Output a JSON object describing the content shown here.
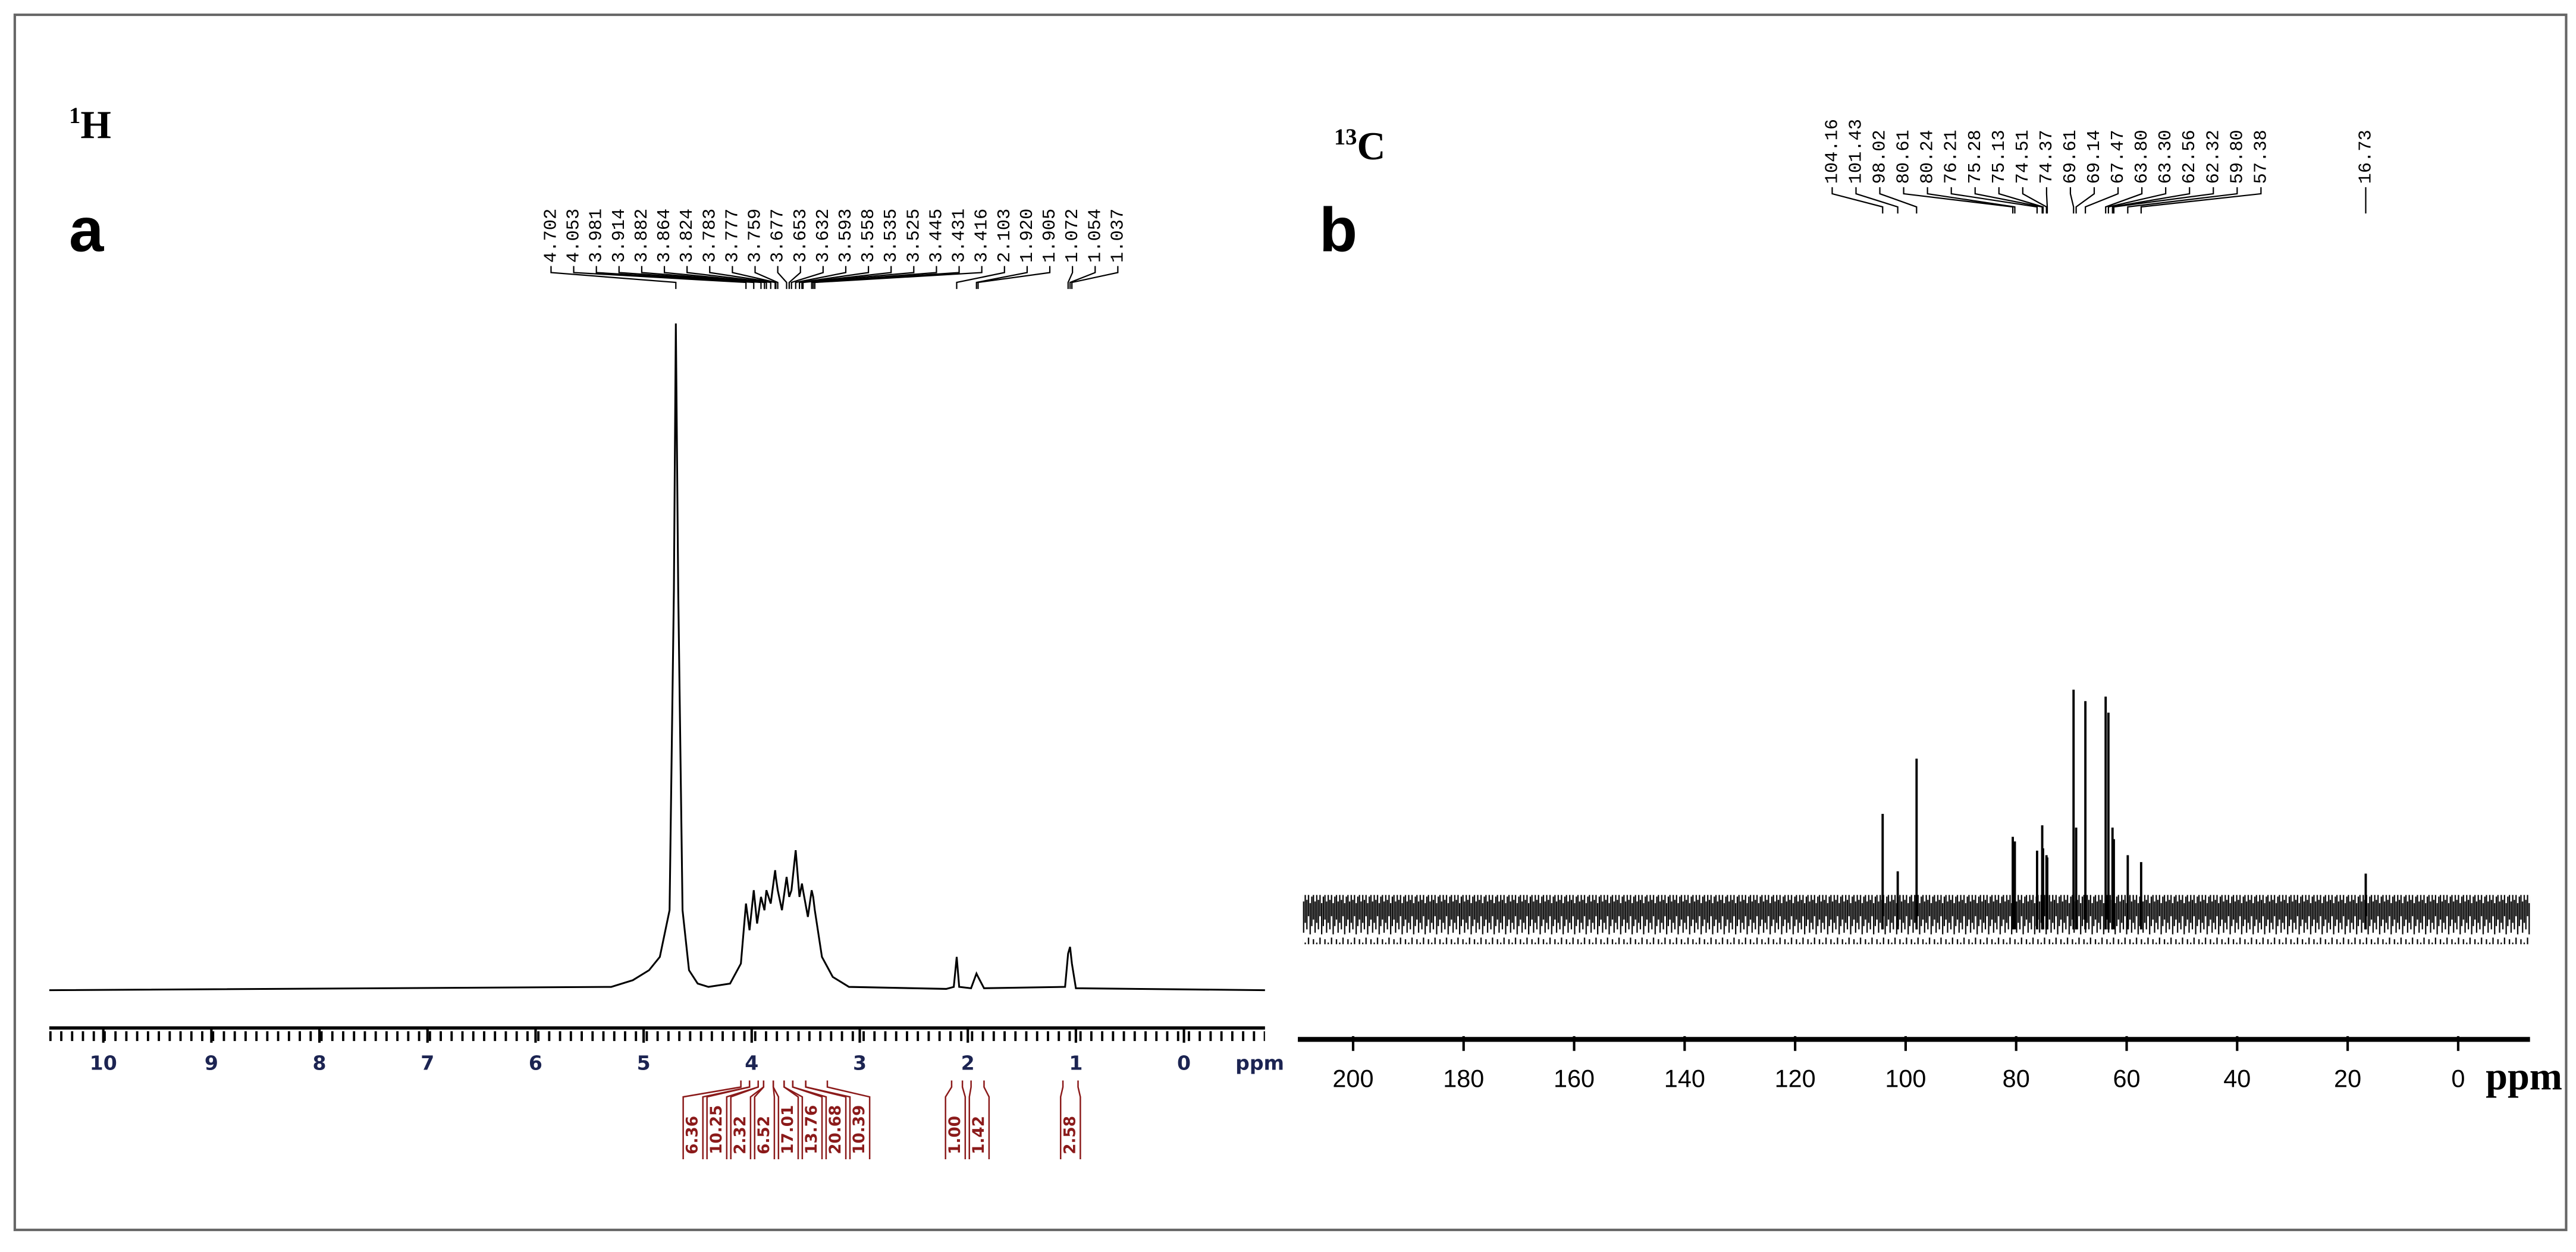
{
  "chart_data": [
    {
      "type": "line",
      "nucleus_mass": "1",
      "nucleus": "H",
      "panel": "a",
      "x_label": "ppm",
      "color": "#000000",
      "tick_color": "#1c2452",
      "integral_color": "#8b1a1a",
      "xlim": [
        10.5,
        -0.75
      ],
      "xticks": [
        10,
        9,
        8,
        7,
        6,
        5,
        4,
        3,
        2,
        1,
        0
      ],
      "ylim": [
        -5.9,
        100
      ],
      "x": [
        10.5,
        5.3,
        5.1,
        4.95,
        4.85,
        4.76,
        4.72,
        4.702,
        4.68,
        4.64,
        4.58,
        4.5,
        4.4,
        4.2,
        4.1,
        4.053,
        4.02,
        3.981,
        3.95,
        3.914,
        3.882,
        3.864,
        3.824,
        3.783,
        3.777,
        3.759,
        3.72,
        3.677,
        3.653,
        3.632,
        3.593,
        3.558,
        3.535,
        3.525,
        3.48,
        3.445,
        3.431,
        3.416,
        3.35,
        3.25,
        3.1,
        2.2,
        2.13,
        2.103,
        2.08,
        1.97,
        1.92,
        1.905,
        1.85,
        1.1,
        1.072,
        1.054,
        1.037,
        1.0,
        -0.75
      ],
      "values": [
        0,
        0.5,
        1.5,
        3,
        5,
        12,
        60,
        100,
        60,
        12,
        3,
        1,
        0.5,
        1,
        4,
        13,
        9,
        15,
        10,
        14,
        12,
        15,
        13,
        18,
        17,
        15,
        12,
        17,
        14,
        15,
        21,
        14,
        16,
        15,
        11,
        15,
        14,
        12,
        5,
        2,
        0.5,
        0.2,
        0.5,
        5,
        0.5,
        0.3,
        2.5,
        2,
        0.3,
        0.5,
        5.5,
        6.5,
        4,
        0.3,
        0
      ],
      "peaks": [
        4.702,
        4.053,
        3.981,
        3.914,
        3.882,
        3.864,
        3.824,
        3.783,
        3.777,
        3.759,
        3.677,
        3.653,
        3.632,
        3.593,
        3.558,
        3.535,
        3.525,
        3.445,
        3.431,
        3.416,
        2.103,
        {
          "value": 1.92,
          "label": "1.920"
        },
        1.905,
        1.072,
        1.054,
        1.037
      ],
      "integrals": [
        6.36,
        10.25,
        2.32,
        6.52,
        17.01,
        13.76,
        20.68,
        10.39,
        {
          "value": 1,
          "label": "1.00"
        },
        1.42,
        2.58
      ],
      "integral_regions": [
        [
          4.1,
          4.02
        ],
        [
          4.02,
          3.94
        ],
        [
          3.94,
          3.89
        ],
        [
          3.89,
          3.8
        ],
        [
          3.8,
          3.7
        ],
        [
          3.7,
          3.62
        ],
        [
          3.62,
          3.5
        ],
        [
          3.5,
          3.3
        ],
        [
          2.15,
          2.05
        ],
        [
          1.97,
          1.85
        ],
        [
          1.12,
          0.98
        ]
      ]
    },
    {
      "type": "stick",
      "nucleus_mass": "13",
      "nucleus": "C",
      "panel": "b",
      "x_label": "ppm",
      "color": "#000000",
      "tick_color": "#000000",
      "xlim": [
        210,
        -13
      ],
      "xticks": [
        200,
        180,
        160,
        140,
        120,
        100,
        80,
        60,
        40,
        20,
        0
      ],
      "ylim": [
        -51.4,
        100
      ],
      "peaks": [
        104.16,
        101.43,
        98.02,
        80.61,
        80.24,
        76.21,
        75.28,
        75.13,
        74.51,
        74.37,
        69.61,
        69.14,
        67.47,
        {
          "value": 63.8,
          "label": "63.80"
        },
        {
          "value": 63.3,
          "label": "63.30"
        },
        62.56,
        62.32,
        {
          "value": 59.8,
          "label": "59.80"
        },
        57.38,
        16.73
      ],
      "values": [
        46,
        21,
        70,
        36,
        34,
        30,
        41,
        31,
        28,
        27,
        100,
        40,
        95,
        97,
        90,
        40,
        35,
        28,
        25,
        20
      ]
    }
  ]
}
